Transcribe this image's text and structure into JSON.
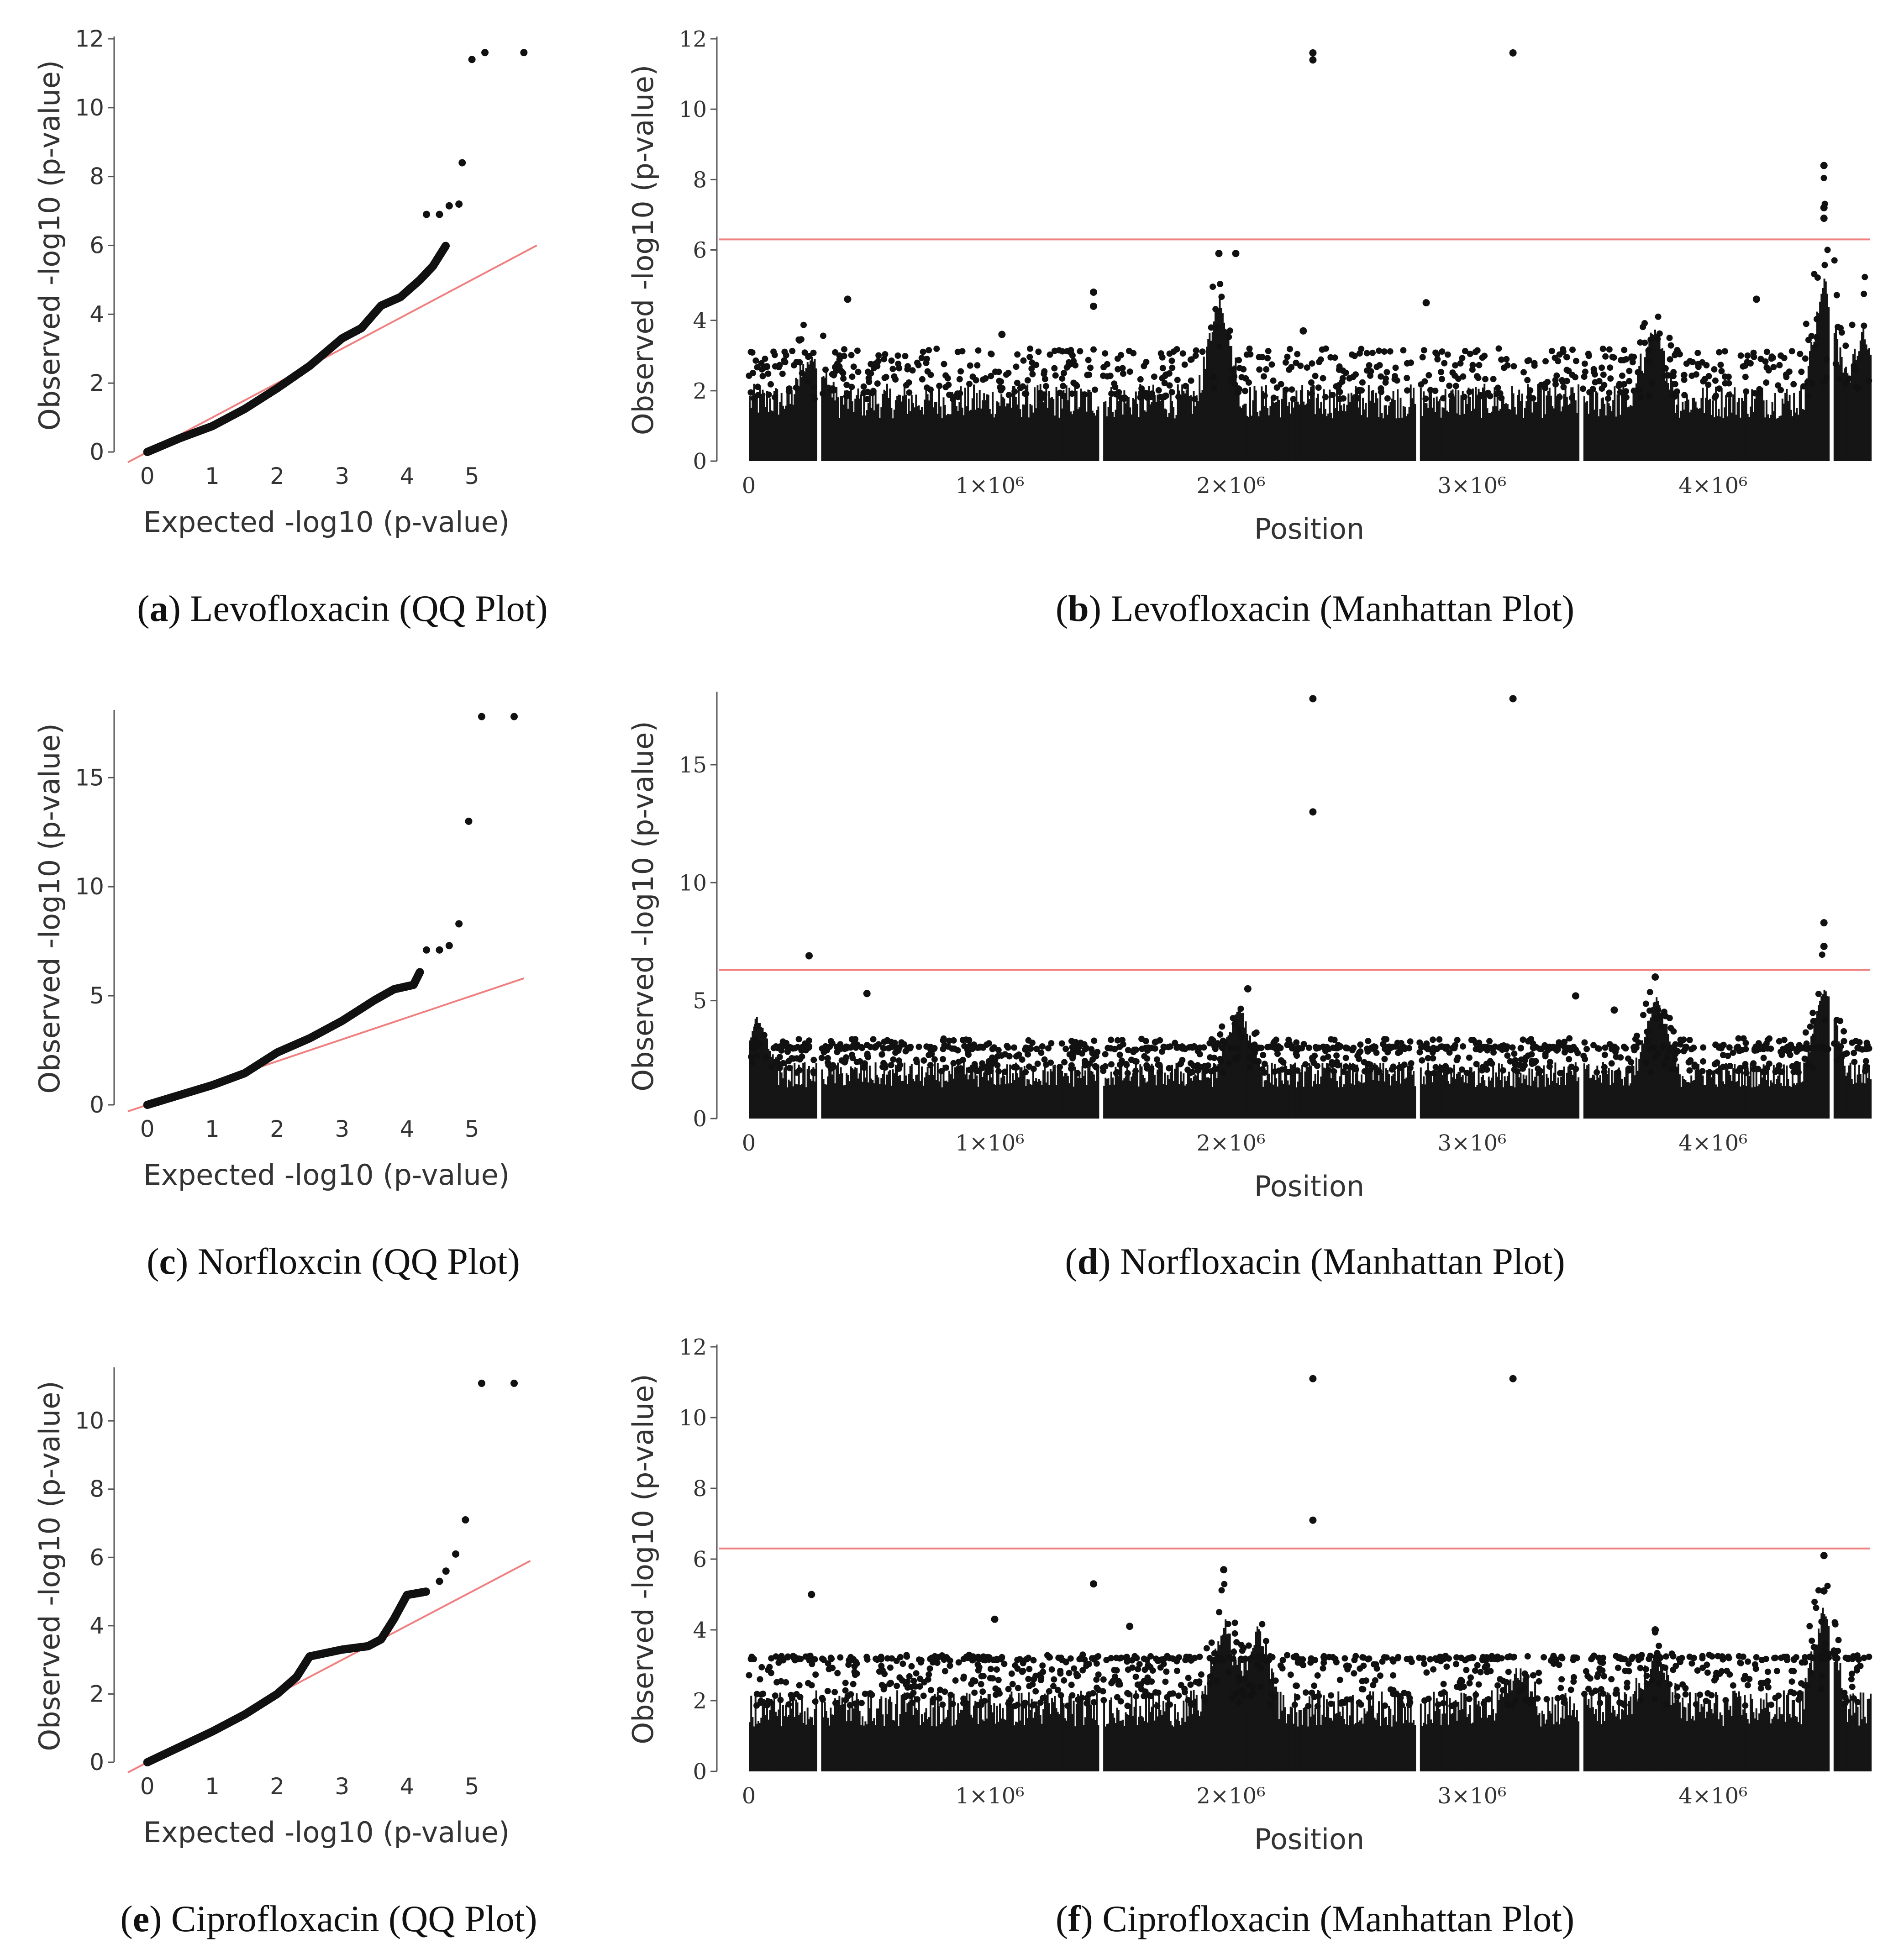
{
  "figure": {
    "panels": [
      {
        "letter": "a",
        "caption": "Levofloxacin (QQ Plot)"
      },
      {
        "letter": "b",
        "caption": "Levofloxacin (Manhattan Plot)"
      },
      {
        "letter": "c",
        "caption": "Norfloxcin (QQ Plot)"
      },
      {
        "letter": "d",
        "caption": "Norfloxacin (Manhattan Plot)"
      },
      {
        "letter": "e",
        "caption": "Ciprofloxacin (QQ Plot)"
      },
      {
        "letter": "f",
        "caption": "Ciprofloxacin (Manhattan Plot)"
      }
    ]
  },
  "colors": {
    "points": "#111111",
    "reference_line": "#f08080",
    "axis": "#555555"
  },
  "chart_data": [
    {
      "id": "a",
      "type": "scatter",
      "title": "Levofloxacin (QQ Plot)",
      "xlabel": "Expected -log10 (p-value)",
      "ylabel": "Observed -log10 (p-value)",
      "xlim": [
        -0.3,
        6.1
      ],
      "ylim": [
        0,
        12
      ],
      "xticks": [
        0,
        1,
        2,
        3,
        4,
        5
      ],
      "yticks": [
        0,
        2,
        4,
        6,
        8,
        10,
        12
      ],
      "reference_line": {
        "x": [
          -0.3,
          6.0
        ],
        "y": [
          -0.3,
          6.0
        ]
      },
      "curve": [
        [
          0,
          0
        ],
        [
          0.5,
          0.4
        ],
        [
          1,
          0.75
        ],
        [
          1.5,
          1.25
        ],
        [
          2,
          1.85
        ],
        [
          2.5,
          2.5
        ],
        [
          3,
          3.3
        ],
        [
          3.3,
          3.6
        ],
        [
          3.6,
          4.25
        ],
        [
          3.9,
          4.5
        ],
        [
          4.2,
          5.0
        ],
        [
          4.4,
          5.4
        ],
        [
          4.6,
          6.0
        ]
      ],
      "outliers": [
        [
          4.3,
          6.9
        ],
        [
          4.5,
          6.9
        ],
        [
          4.65,
          7.15
        ],
        [
          4.8,
          7.2
        ],
        [
          4.85,
          8.4
        ],
        [
          5.0,
          11.4
        ],
        [
          5.2,
          11.6
        ],
        [
          5.8,
          11.6
        ]
      ]
    },
    {
      "id": "b",
      "type": "scatter",
      "title": "Levofloxacin (Manhattan Plot)",
      "xlabel": "Position",
      "ylabel": "Observed -log10 (p-value)",
      "xlim": [
        0,
        4650000
      ],
      "ylim": [
        0,
        12
      ],
      "xticks": [
        0,
        1000000,
        2000000,
        3000000,
        4000000
      ],
      "xtick_labels": [
        "0",
        "1×10⁶",
        "2×10⁶",
        "3×10⁶",
        "4×10⁶"
      ],
      "yticks": [
        0,
        2,
        4,
        6,
        8,
        10,
        12
      ],
      "threshold": 6.3,
      "base_level": 2.2,
      "gaps": [
        290000,
        1460000,
        2770000,
        3450000,
        4490000
      ],
      "peaks": [
        [
          1950000,
          4.5,
          5.9
        ],
        [
          3750000,
          3.5,
          4.6
        ],
        [
          4460000,
          5.0,
          8.4
        ],
        [
          4620000,
          3.5,
          5.6
        ],
        [
          260000,
          2.8,
          4.3
        ]
      ],
      "outliers": [
        [
          2340000,
          11.6
        ],
        [
          2340000,
          11.4
        ],
        [
          3170000,
          11.6
        ],
        [
          4460000,
          8.4
        ],
        [
          4460000,
          7.2
        ],
        [
          4460000,
          6.9
        ],
        [
          1950000,
          5.9
        ],
        [
          2020000,
          5.9
        ],
        [
          410000,
          4.6
        ],
        [
          1430000,
          4.8
        ],
        [
          2810000,
          4.5
        ],
        [
          4180000,
          4.6
        ],
        [
          1430000,
          4.4
        ],
        [
          2300000,
          3.7
        ],
        [
          1050000,
          3.6
        ]
      ]
    },
    {
      "id": "c",
      "type": "scatter",
      "title": "Norfloxcin (QQ Plot)",
      "xlabel": "Expected -log10 (p-value)",
      "ylabel": "Observed -log10 (p-value)",
      "xlim": [
        -0.3,
        6.1
      ],
      "ylim": [
        0,
        18
      ],
      "xticks": [
        0,
        1,
        2,
        3,
        4,
        5
      ],
      "yticks": [
        0,
        5,
        10,
        15
      ],
      "reference_line": {
        "x": [
          -0.3,
          5.8
        ],
        "y": [
          -0.3,
          5.8
        ]
      },
      "curve": [
        [
          0,
          0
        ],
        [
          0.5,
          0.45
        ],
        [
          1,
          0.9
        ],
        [
          1.5,
          1.45
        ],
        [
          2,
          2.4
        ],
        [
          2.5,
          3.05
        ],
        [
          3,
          3.85
        ],
        [
          3.5,
          4.8
        ],
        [
          3.8,
          5.3
        ],
        [
          4.1,
          5.5
        ],
        [
          4.2,
          6.1
        ]
      ],
      "outliers": [
        [
          4.3,
          7.1
        ],
        [
          4.5,
          7.1
        ],
        [
          4.65,
          7.3
        ],
        [
          4.8,
          8.3
        ],
        [
          4.95,
          13.0
        ],
        [
          5.15,
          17.8
        ],
        [
          5.65,
          17.8
        ]
      ]
    },
    {
      "id": "d",
      "type": "scatter",
      "title": "Norfloxacin (Manhattan Plot)",
      "xlabel": "Position",
      "ylabel": "Observed -log10 (p-value)",
      "xlim": [
        0,
        4650000
      ],
      "ylim": [
        0,
        18
      ],
      "xticks": [
        0,
        1000000,
        2000000,
        3000000,
        4000000
      ],
      "xtick_labels": [
        "0",
        "1×10⁶",
        "2×10⁶",
        "3×10⁶",
        "4×10⁶"
      ],
      "yticks": [
        0,
        5,
        10,
        15
      ],
      "threshold": 6.3,
      "base_level": 2.4,
      "band_level": 3.0,
      "gaps": [
        290000,
        1460000,
        2770000,
        3450000,
        4490000
      ],
      "peaks": [
        [
          2030000,
          4.5,
          5.5
        ],
        [
          3760000,
          5.0,
          6.0
        ],
        [
          4460000,
          5.5,
          8.3
        ],
        [
          30000,
          4.0,
          4.8
        ]
      ],
      "outliers": [
        [
          2340000,
          17.8
        ],
        [
          3170000,
          17.8
        ],
        [
          2340000,
          13.0
        ],
        [
          250000,
          6.9
        ],
        [
          4460000,
          8.3
        ],
        [
          4460000,
          7.3
        ],
        [
          490000,
          5.3
        ],
        [
          3430000,
          5.2
        ],
        [
          3590000,
          4.6
        ],
        [
          2070000,
          5.5
        ],
        [
          3760000,
          6.0
        ]
      ]
    },
    {
      "id": "e",
      "type": "scatter",
      "title": "Ciprofloxacin (QQ Plot)",
      "xlabel": "Expected -log10 (p-value)",
      "ylabel": "Observed -log10 (p-value)",
      "xlim": [
        -0.3,
        6.1
      ],
      "ylim": [
        0,
        11.5
      ],
      "xticks": [
        0,
        1,
        2,
        3,
        4,
        5
      ],
      "yticks": [
        0,
        2,
        4,
        6,
        8,
        10
      ],
      "reference_line": {
        "x": [
          -0.3,
          5.9
        ],
        "y": [
          -0.3,
          5.9
        ]
      },
      "curve": [
        [
          0,
          0
        ],
        [
          0.5,
          0.45
        ],
        [
          1,
          0.9
        ],
        [
          1.5,
          1.4
        ],
        [
          2,
          2.0
        ],
        [
          2.3,
          2.5
        ],
        [
          2.5,
          3.1
        ],
        [
          3,
          3.3
        ],
        [
          3.4,
          3.4
        ],
        [
          3.6,
          3.6
        ],
        [
          3.8,
          4.2
        ],
        [
          4.0,
          4.9
        ],
        [
          4.3,
          5.0
        ]
      ],
      "outliers": [
        [
          4.5,
          5.3
        ],
        [
          4.6,
          5.6
        ],
        [
          4.75,
          6.1
        ],
        [
          4.9,
          7.1
        ],
        [
          5.15,
          11.1
        ],
        [
          5.65,
          11.1
        ]
      ]
    },
    {
      "id": "f",
      "type": "scatter",
      "title": "Ciprofloxacin (Manhattan Plot)",
      "xlabel": "Position",
      "ylabel": "Observed -log10 (p-value)",
      "xlim": [
        0,
        4650000
      ],
      "ylim": [
        0,
        12
      ],
      "xticks": [
        0,
        1000000,
        2000000,
        3000000,
        4000000
      ],
      "xtick_labels": [
        "0",
        "1×10⁶",
        "2×10⁶",
        "3×10⁶",
        "4×10⁶"
      ],
      "yticks": [
        0,
        2,
        4,
        6,
        8,
        10,
        12
      ],
      "threshold": 6.3,
      "base_level": 2.3,
      "band_level": 3.2,
      "gaps": [
        290000,
        1460000,
        2770000,
        3450000,
        4490000
      ],
      "peaks": [
        [
          2110000,
          3.8,
          4.7
        ],
        [
          1970000,
          4.0,
          5.7
        ],
        [
          3760000,
          3.0,
          4.0
        ],
        [
          4460000,
          4.5,
          6.0
        ],
        [
          3190000,
          2.6,
          3.2
        ]
      ],
      "outliers": [
        [
          2340000,
          11.1
        ],
        [
          3170000,
          11.1
        ],
        [
          2340000,
          7.1
        ],
        [
          4460000,
          6.1
        ],
        [
          4460000,
          5.1
        ],
        [
          1970000,
          5.7
        ],
        [
          260000,
          5.0
        ],
        [
          1430000,
          5.3
        ],
        [
          3760000,
          4.0
        ],
        [
          1020000,
          4.3
        ],
        [
          1580000,
          4.1
        ]
      ]
    }
  ]
}
